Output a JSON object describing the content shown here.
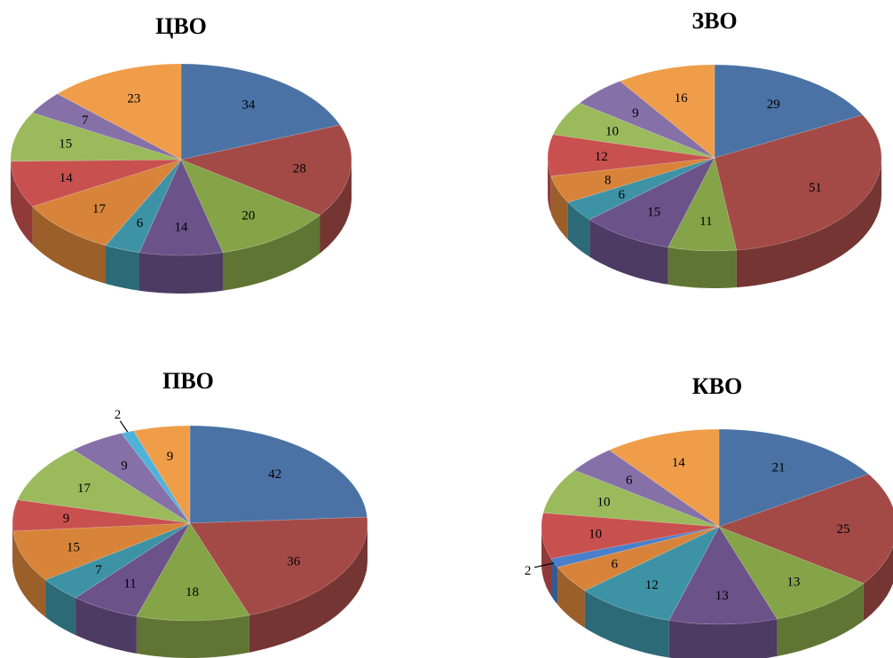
{
  "chart_data": [
    {
      "type": "pie",
      "title": "ЦВО",
      "values": [
        34,
        28,
        20,
        14,
        6,
        17,
        14,
        15,
        7,
        23
      ],
      "colors": [
        "#4a72a5",
        "#a34a47",
        "#85a347",
        "#6b5289",
        "#3d93a5",
        "#d7843a",
        "#c85150",
        "#9aba5c",
        "#8670a8",
        "#f09d4a"
      ]
    },
    {
      "type": "pie",
      "title": "ЗВО",
      "values": [
        29,
        51,
        11,
        15,
        6,
        8,
        12,
        10,
        9,
        16
      ],
      "colors": [
        "#4a72a5",
        "#a34a47",
        "#85a347",
        "#6b5289",
        "#3d93a5",
        "#d7843a",
        "#c85150",
        "#9aba5c",
        "#8670a8",
        "#f09d4a"
      ]
    },
    {
      "type": "pie",
      "title": "ПВО",
      "values": [
        42,
        36,
        18,
        11,
        7,
        15,
        9,
        17,
        9,
        2,
        9
      ],
      "colors": [
        "#4a72a5",
        "#a34a47",
        "#85a347",
        "#6b5289",
        "#3d93a5",
        "#d7843a",
        "#c85150",
        "#9aba5c",
        "#8670a8",
        "#4fb3d9",
        "#f09d4a"
      ]
    },
    {
      "type": "pie",
      "title": "КВО",
      "values": [
        21,
        25,
        13,
        13,
        12,
        6,
        2,
        10,
        10,
        6,
        14
      ],
      "colors": [
        "#4a72a5",
        "#a34a47",
        "#85a347",
        "#6b5289",
        "#3d93a5",
        "#d7843a",
        "#4a7fcb",
        "#c85150",
        "#9aba5c",
        "#8670a8",
        "#f09d4a"
      ]
    }
  ]
}
